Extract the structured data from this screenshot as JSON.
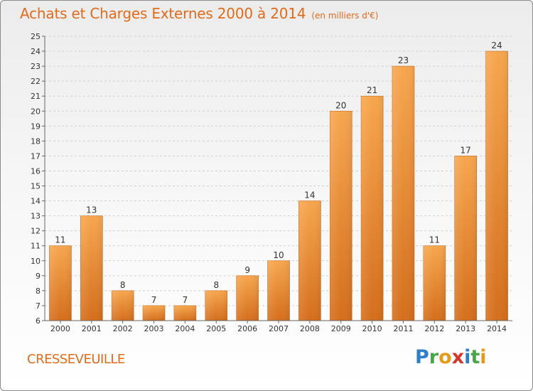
{
  "chart_data": {
    "type": "bar",
    "title": "Achats et Charges Externes 2000 à 2014",
    "unit": "(en milliers d'€)",
    "categories": [
      "2000",
      "2001",
      "2002",
      "2003",
      "2004",
      "2005",
      "2006",
      "2007",
      "2008",
      "2009",
      "2010",
      "2011",
      "2012",
      "2013",
      "2014"
    ],
    "values": [
      11,
      13,
      8,
      7,
      7,
      8,
      9,
      10,
      14,
      20,
      21,
      23,
      11,
      17,
      24
    ],
    "ylim": [
      6,
      25
    ],
    "yticks": [
      6,
      7,
      8,
      9,
      10,
      11,
      12,
      13,
      14,
      15,
      16,
      17,
      18,
      19,
      20,
      21,
      22,
      23,
      24,
      25
    ],
    "grid": true,
    "bar_color": "#f28a2e",
    "xlabel": "",
    "ylabel": ""
  },
  "commune": "CRESSEVEUILLE",
  "logo": {
    "p": "P",
    "r": "r",
    "o": "o",
    "x": "x",
    "i1": "i",
    "t": "t",
    "i2": "i"
  },
  "colors": {
    "title": "#e06b1a",
    "bar": "#f28a2e",
    "bar_dark": "#d9731e",
    "grid": "#cfcfcf"
  }
}
